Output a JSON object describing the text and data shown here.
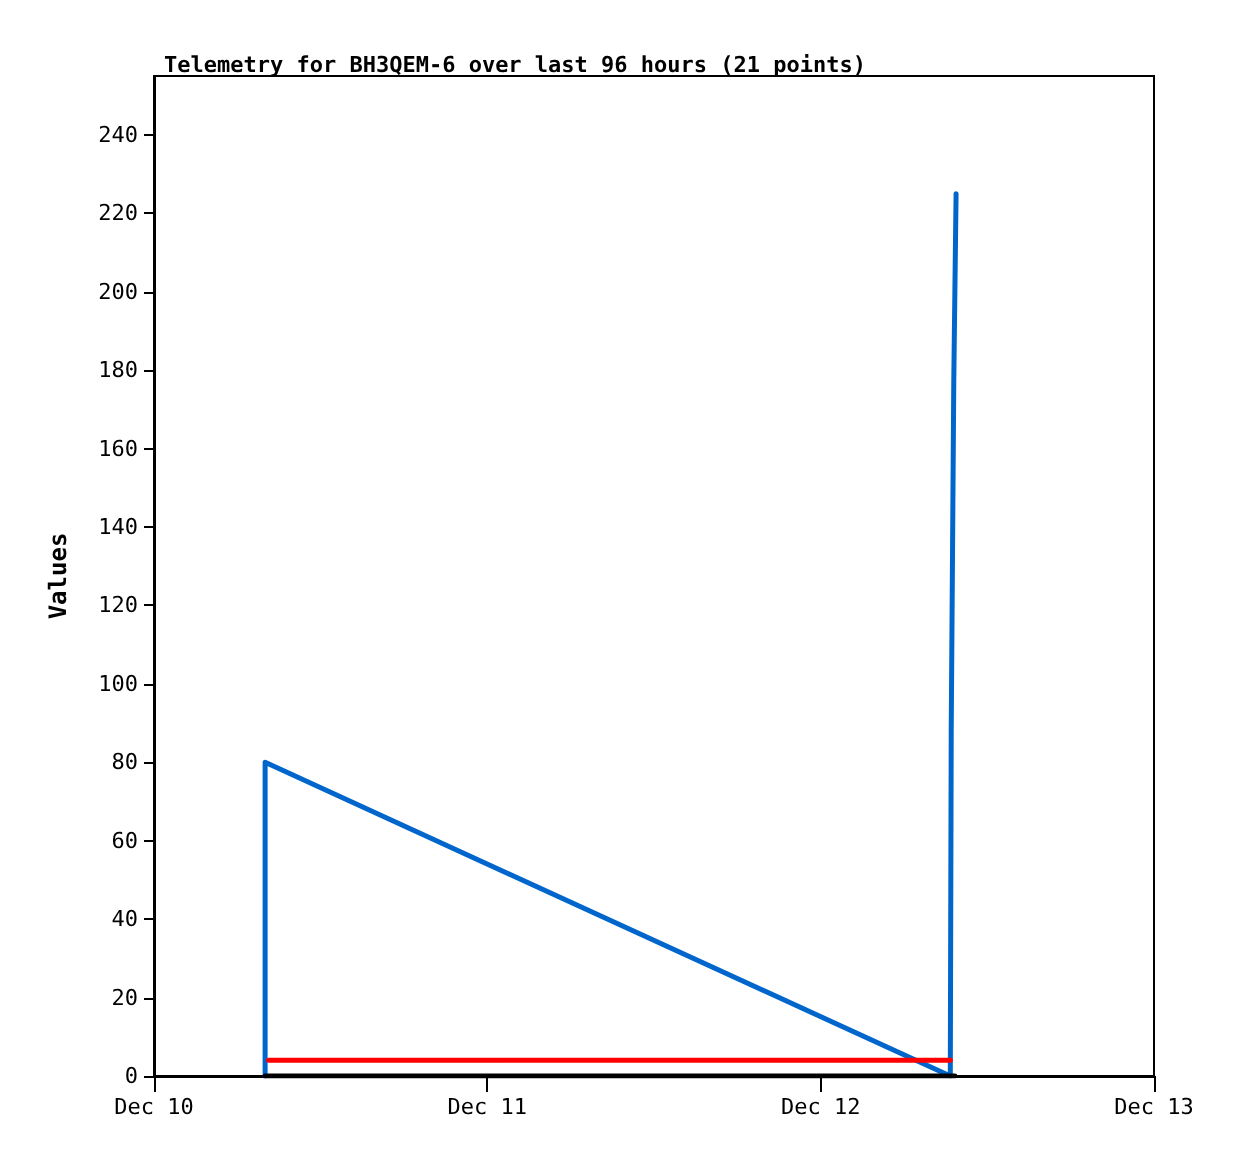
{
  "chart_data": {
    "type": "line",
    "title": "Telemetry for BH3QEM-6 over last 96 hours (21 points)",
    "ylabel": "Values",
    "series": [
      {
        "color": "#0066cc",
        "x": [
          "--12-10T08:00",
          "--12-10T08:00",
          "--12-12T09:20",
          "--12-12T09:24",
          "--12-12T09:35",
          "--12-12T09:45"
        ],
        "values": [
          0,
          80,
          0,
          88,
          177,
          225
        ]
      },
      {
        "color": "#ff0000",
        "x": [
          "--12-10T08:15",
          "--12-12T09:20"
        ],
        "values": [
          4,
          4
        ]
      },
      {
        "color": "#000000",
        "x": [
          "--12-10T08:00",
          "--12-12T09:40"
        ],
        "values": [
          0,
          0
        ]
      }
    ],
    "xlim": [
      "--12-10",
      "--12-13"
    ],
    "xticks": [
      {
        "value": "--12-10",
        "label": "Dec 10"
      },
      {
        "value": "--12-11",
        "label": "Dec 11"
      },
      {
        "value": "--12-12",
        "label": "Dec 12"
      },
      {
        "value": "--12-13",
        "label": "Dec 13"
      }
    ],
    "ylim": [
      0,
      255
    ],
    "yticks": [
      0,
      20,
      40,
      60,
      80,
      100,
      120,
      140,
      160,
      180,
      200,
      220,
      240
    ],
    "marker": "none",
    "line_style": "solid"
  }
}
